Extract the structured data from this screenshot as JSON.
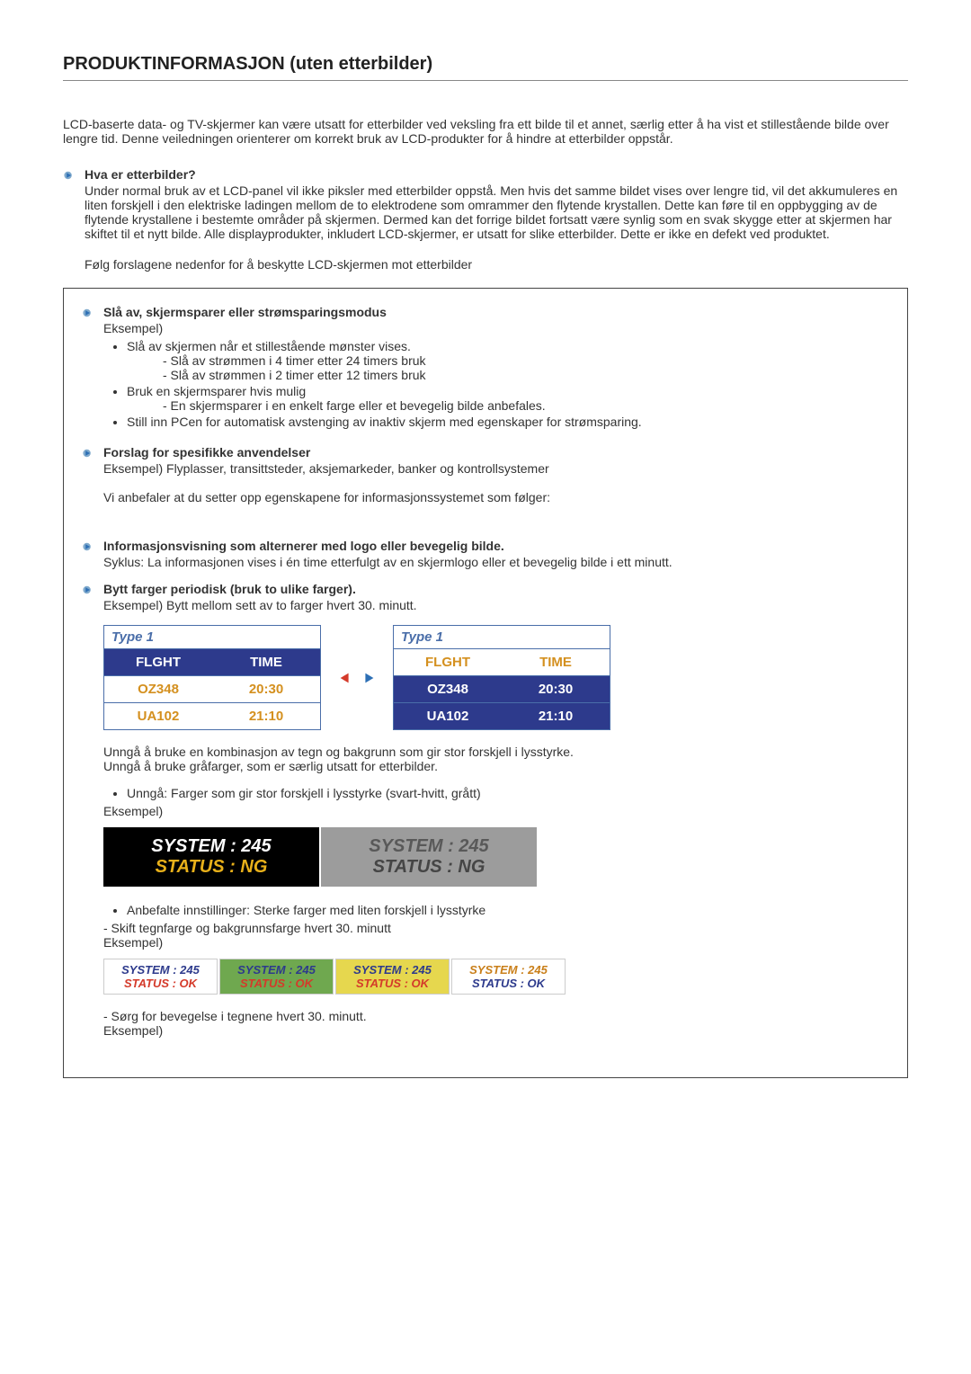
{
  "page_title": "PRODUKTINFORMASJON (uten etterbilder)",
  "intro_para": "LCD-baserte data- og TV-skjermer kan være utsatt for etterbilder ved veksling fra ett bilde til et annet, særlig etter å ha vist et stillestående bilde over lengre tid.\nDenne veiledningen orienterer om korrekt bruk av LCD-produkter for å hindre at etterbilder oppstår.",
  "sec1": {
    "title": "Hva er etterbilder?",
    "body": "Under normal bruk av et LCD-panel vil ikke piksler med etterbilder oppstå. Men hvis det samme bildet vises over lengre tid, vil det akkumuleres en liten forskjell i den elektriske ladingen mellom de to elektrodene som omrammer den flytende krystallen. Dette kan føre til en oppbygging av de flytende krystallene i bestemte områder på skjermen. Dermed kan det forrige bildet fortsatt være synlig som en svak skygge etter at skjermen har skiftet til et nytt bilde. Alle displayprodukter, inkludert LCD-skjermer, er utsatt for slike etterbilder. Dette er ikke en defekt ved produktet.",
    "follow": "Følg forslagene nedenfor for å beskytte LCD-skjermen mot etterbilder"
  },
  "sec2": {
    "title": "Slå av, skjermsparer eller strømsparingsmodus",
    "sub_label": "Eksempel)",
    "b1": "Slå av skjermen når et stillestående mønster vises.",
    "b1a": "- Slå av strømmen i 4 timer etter 24 timers bruk",
    "b1b": "- Slå av strømmen i 2 timer etter 12 timers bruk",
    "b2": "Bruk en skjermsparer hvis mulig",
    "b2a": "- En skjermsparer i en enkelt farge eller et bevegelig bilde anbefales.",
    "b3": "Still inn PCen for automatisk avstenging av inaktiv skjerm med egenskaper for strømsparing."
  },
  "sec3": {
    "title": "Forslag for spesifikke anvendelser",
    "l1": "Eksempel) Flyplasser, transittsteder, aksjemarkeder, banker og kontrollsystemer",
    "l2": "Vi anbefaler at du setter opp egenskapene for informasjonssystemet som følger:"
  },
  "sec4": {
    "title": "Informasjonsvisning som alternerer med logo eller bevegelig bilde.",
    "body": "Syklus: La informasjonen vises i én time etterfulgt av en skjermlogo eller et bevegelig bilde i ett minutt."
  },
  "sec5": {
    "title": "Bytt farger periodisk (bruk to ulike farger).",
    "body": "Eksempel) Bytt mellom sett av to farger hvert 30. minutt.",
    "type_panels": [
      {
        "label": "Type 1",
        "head_bg": "#2d3a8c",
        "head_fg": "#ffffff",
        "body_bg": "#ffffff",
        "body_fg": "#d4901f",
        "cols": [
          "FLGHT",
          "TIME"
        ],
        "rows": [
          [
            "OZ348",
            "20:30"
          ],
          [
            "UA102",
            "21:10"
          ]
        ]
      },
      {
        "label": "Type 1",
        "head_bg": "#ffffff",
        "head_fg": "#d4901f",
        "body_bg": "#2d3a8c",
        "body_fg": "#ffffff",
        "cols": [
          "FLGHT",
          "TIME"
        ],
        "rows": [
          [
            "OZ348",
            "20:30"
          ],
          [
            "UA102",
            "21:10"
          ]
        ]
      }
    ],
    "arrow_left_color": "#d43a2a",
    "arrow_right_color": "#2d6fb5",
    "after1": "Unngå å bruke en kombinasjon av tegn og bakgrunn som gir stor forskjell i lysstyrke.",
    "after2": "Unngå å bruke gråfarger, som er særlig utsatt for etterbilder.",
    "avoid_bullet": "Unngå: Farger som gir stor forskjell i lysstyrke (svart-hvitt, grått)",
    "ex_label": "Eksempel)",
    "sys_panels": [
      {
        "bg": "#000000",
        "t1": "SYSTEM : 245",
        "c1": "#ffffff",
        "t2": "STATUS : NG",
        "c2": "#e8b01a"
      },
      {
        "bg": "#9c9c9c",
        "t1": "SYSTEM : 245",
        "c1": "#595959",
        "t2": "STATUS : NG",
        "c2": "#454545"
      }
    ],
    "rec_bullet": "Anbefalte innstillinger: Sterke farger med liten forskjell i lysstyrke",
    "rec_l1": "- Skift tegnfarge og bakgrunnsfarge hvert 30. minutt",
    "rec_l2": "Eksempel)",
    "ok_panels": [
      {
        "bg": "#ffffff",
        "t1": "SYSTEM : 245",
        "c1": "#2d3a8c",
        "t2": "STATUS : OK",
        "c2": "#d43a2a"
      },
      {
        "bg": "#6fa84f",
        "t1": "SYSTEM : 245",
        "c1": "#2d3a8c",
        "t2": "STATUS : OK",
        "c2": "#d43a2a"
      },
      {
        "bg": "#e6d74e",
        "t1": "SYSTEM : 245",
        "c1": "#2d3a8c",
        "t2": "STATUS : OK",
        "c2": "#d43a2a"
      },
      {
        "bg": "#ffffff",
        "t1": "SYSTEM : 245",
        "c1": "#c97f1a",
        "t2": "STATUS : OK",
        "c2": "#2d3a8c"
      }
    ],
    "move_l1": "- Sørg for bevegelse i tegnene hvert 30. minutt.",
    "move_l2": "Eksempel)"
  }
}
